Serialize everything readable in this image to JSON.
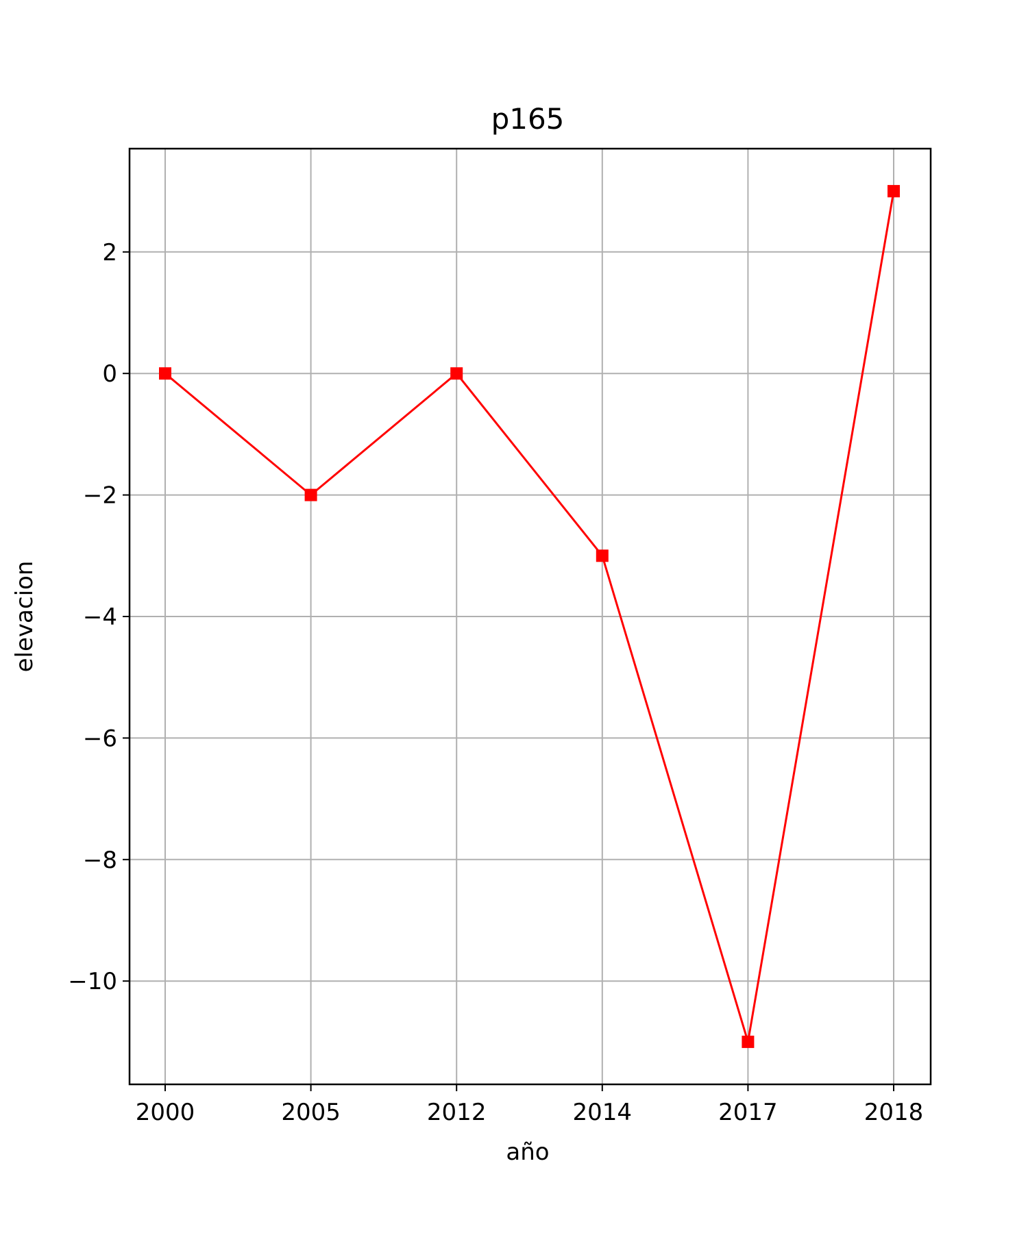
{
  "chart_data": {
    "type": "line",
    "title": "p165",
    "xlabel": "año",
    "ylabel": "elevacion",
    "categories": [
      "2000",
      "2005",
      "2012",
      "2014",
      "2017",
      "2018"
    ],
    "series": [
      {
        "values": [
          0,
          -2,
          0,
          -3,
          -11,
          3
        ],
        "color": "#ff0000",
        "marker": "square"
      }
    ],
    "yticks": [
      2,
      0,
      -2,
      -4,
      -6,
      -8,
      -10
    ],
    "ytick_labels": [
      "2",
      "0",
      "−2",
      "−4",
      "−6",
      "−8",
      "−10"
    ],
    "ylim": [
      -11.7,
      3.7
    ],
    "grid": true
  }
}
